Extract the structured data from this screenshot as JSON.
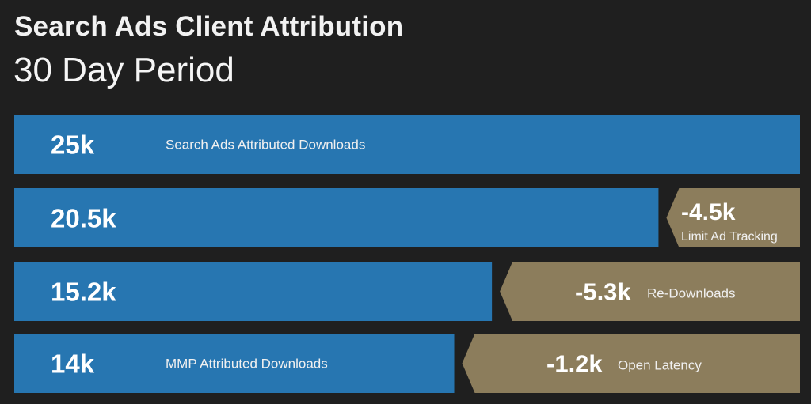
{
  "title": "Search Ads Client Attribution",
  "subtitle": "30 Day Period",
  "colors": {
    "blue": "#2776b1",
    "tan": "#8c7d5c",
    "background": "#1f1f1f"
  },
  "chart_data": {
    "type": "bar",
    "orientation": "horizontal",
    "max": 25,
    "unit": "k",
    "rows": [
      {
        "value": 25,
        "value_label": "25k",
        "label": "Search Ads Attributed Downloads",
        "deduction": null
      },
      {
        "value": 20.5,
        "value_label": "20.5k",
        "label": "",
        "deduction": {
          "value": -4.5,
          "value_label": "-4.5k",
          "label": "Limit Ad Tracking"
        }
      },
      {
        "value": 15.2,
        "value_label": "15.2k",
        "label": "",
        "deduction": {
          "value": -5.3,
          "value_label": "-5.3k",
          "label": "Re-Downloads"
        }
      },
      {
        "value": 14,
        "value_label": "14k",
        "label": "MMP Attributed Downloads",
        "deduction": {
          "value": -1.2,
          "value_label": "-1.2k",
          "label": "Open Latency"
        }
      }
    ]
  }
}
